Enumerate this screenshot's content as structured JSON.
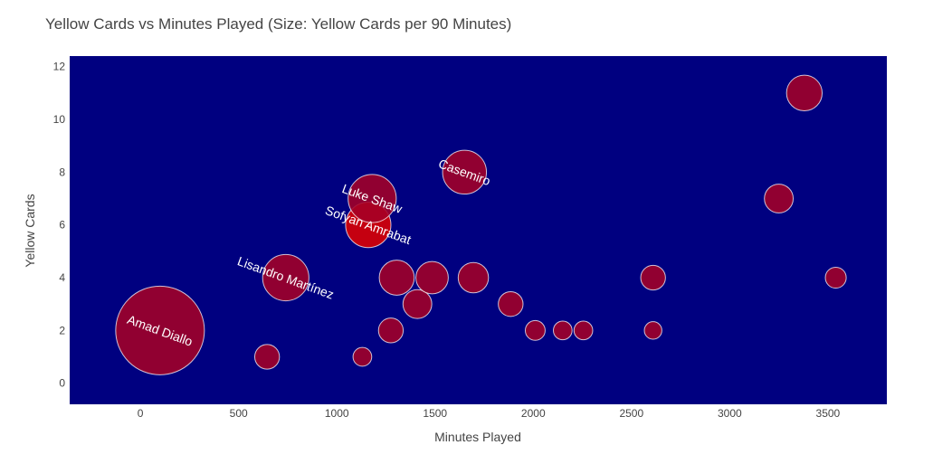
{
  "chart_data": {
    "type": "scatter",
    "title": "Yellow Cards vs Minutes Played (Size: Yellow Cards per 90 Minutes)",
    "xlabel": "Minutes Played",
    "ylabel": "Yellow Cards",
    "xlim": [
      -360,
      3800
    ],
    "ylim": [
      -0.8,
      12.4
    ],
    "x_ticks": [
      0,
      500,
      1000,
      1500,
      2000,
      2500,
      3000,
      3500
    ],
    "y_ticks": [
      0,
      2,
      4,
      6,
      8,
      10,
      12
    ],
    "grid": false,
    "plot_background": "#000080",
    "marker_color": "#a50026",
    "marker_highlight_color": "#e00000",
    "marker_outline": "#ffffff",
    "points": [
      {
        "x": 100,
        "y": 2,
        "size_per90": 1.8,
        "label": "Amad Diallo"
      },
      {
        "x": 740,
        "y": 4,
        "size_per90": 0.49,
        "label": "Lisandro Martínez"
      },
      {
        "x": 1160,
        "y": 6,
        "size_per90": 0.47,
        "label": "Sofyan Amrabat",
        "highlight": true
      },
      {
        "x": 1180,
        "y": 7,
        "size_per90": 0.53,
        "label": "Luke Shaw"
      },
      {
        "x": 1650,
        "y": 8,
        "size_per90": 0.44,
        "label": "Casemiro"
      },
      {
        "x": 3380,
        "y": 11,
        "size_per90": 0.29,
        "label": ""
      },
      {
        "x": 3250,
        "y": 7,
        "size_per90": 0.19,
        "label": ""
      },
      {
        "x": 645,
        "y": 1,
        "size_per90": 0.14,
        "label": ""
      },
      {
        "x": 1130,
        "y": 1,
        "size_per90": 0.08,
        "label": ""
      },
      {
        "x": 1275,
        "y": 2,
        "size_per90": 0.14,
        "label": ""
      },
      {
        "x": 1305,
        "y": 4,
        "size_per90": 0.28,
        "label": ""
      },
      {
        "x": 1410,
        "y": 3,
        "size_per90": 0.19,
        "label": ""
      },
      {
        "x": 1485,
        "y": 4,
        "size_per90": 0.24,
        "label": ""
      },
      {
        "x": 1695,
        "y": 4,
        "size_per90": 0.21,
        "label": ""
      },
      {
        "x": 1885,
        "y": 3,
        "size_per90": 0.14,
        "label": ""
      },
      {
        "x": 2010,
        "y": 2,
        "size_per90": 0.09,
        "label": ""
      },
      {
        "x": 2150,
        "y": 2,
        "size_per90": 0.08,
        "label": ""
      },
      {
        "x": 2255,
        "y": 2,
        "size_per90": 0.08,
        "label": ""
      },
      {
        "x": 2610,
        "y": 4,
        "size_per90": 0.14,
        "label": ""
      },
      {
        "x": 2610,
        "y": 2,
        "size_per90": 0.07,
        "label": ""
      },
      {
        "x": 3540,
        "y": 4,
        "size_per90": 0.1,
        "label": ""
      }
    ]
  }
}
